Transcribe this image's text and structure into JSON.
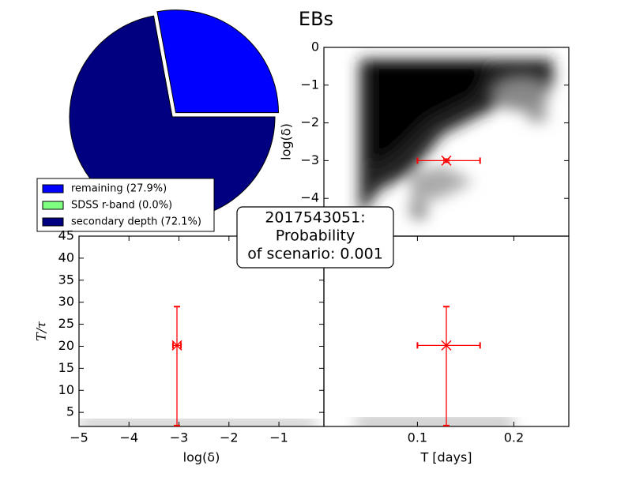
{
  "title": "EBs",
  "annotation": {
    "lines": [
      "2017543051:",
      "Probability",
      "of scenario: 0.001"
    ]
  },
  "chart_data": [
    {
      "type": "pie",
      "categories": [
        "remaining (27.9%)",
        "SDSS r-band (0.0%)",
        "secondary depth (72.1%)"
      ],
      "values": [
        27.9,
        0.0,
        72.1
      ],
      "colors": [
        "#0000ff",
        "#7fff7f",
        "#000080"
      ],
      "legend": "lower left"
    },
    {
      "type": "errorbar",
      "y_label": "log(δ)",
      "xlim": [
        0.003,
        0.257
      ],
      "ylim": [
        -5,
        0
      ],
      "yticks": [
        0,
        {
          "value": -1,
          "label": "−1"
        },
        {
          "value": -2,
          "label": "−2"
        },
        {
          "value": -3,
          "label": "−3"
        },
        {
          "value": -4,
          "label": "−4"
        }
      ],
      "color": "#ff0000",
      "points": {
        "x": [
          0.13
        ],
        "y": [
          -3.0
        ],
        "xerr_minus": [
          0.03
        ],
        "xerr_plus": [
          0.035
        ],
        "yerr_minus": [
          0.04
        ],
        "yerr_plus": [
          0.04
        ]
      }
    },
    {
      "type": "errorbar",
      "x_label": "log(δ)",
      "y_label": "T/τ",
      "xlim": [
        -5,
        -0.1
      ],
      "ylim": [
        1.8,
        45
      ],
      "xticks": [
        {
          "value": -5,
          "label": "−5"
        },
        {
          "value": -4,
          "label": "−4"
        },
        {
          "value": -3,
          "label": "−3"
        },
        {
          "value": -2,
          "label": "−2"
        },
        {
          "value": -1,
          "label": "−1"
        }
      ],
      "yticks": [
        5,
        10,
        15,
        20,
        25,
        30,
        35,
        40,
        45
      ],
      "color": "#ff0000",
      "points": {
        "x": [
          -3.04
        ],
        "y": [
          20.2
        ],
        "xerr_minus": [
          0.08
        ],
        "xerr_plus": [
          0.08
        ],
        "yerr_minus": [
          18.2
        ],
        "yerr_plus": [
          8.8
        ]
      }
    },
    {
      "type": "errorbar",
      "x_label": "T [days]",
      "xlim": [
        0.003,
        0.257
      ],
      "ylim": [
        1.8,
        45
      ],
      "xticks": [
        0.1,
        0.2
      ],
      "color": "#ff0000",
      "points": {
        "x": [
          0.13
        ],
        "y": [
          20.2
        ],
        "xerr_minus": [
          0.03
        ],
        "xerr_plus": [
          0.035
        ],
        "yerr_minus": [
          18.2
        ],
        "yerr_plus": [
          8.8
        ]
      }
    }
  ]
}
